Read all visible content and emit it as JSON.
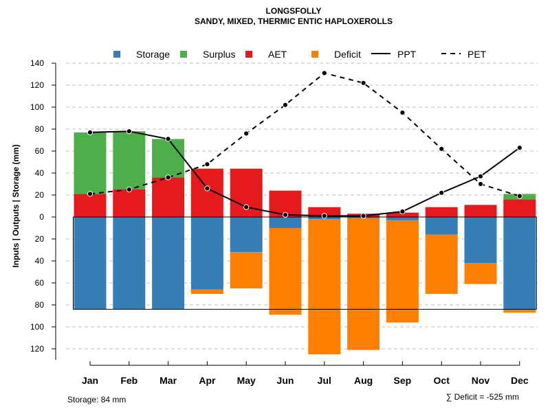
{
  "chart_data": {
    "type": "bar",
    "title": "LONGSFOLLY",
    "subtitle": "SANDY, MIXED, THERMIC ENTIC HAPLOXEROLLS",
    "ylabel": "Inputs | Outputs | Storage    (mm)",
    "categories": [
      "Jan",
      "Feb",
      "Mar",
      "Apr",
      "May",
      "Jun",
      "Jul",
      "Aug",
      "Sep",
      "Oct",
      "Nov",
      "Dec"
    ],
    "ylim": [
      -130,
      140
    ],
    "y_ticks": [
      140,
      120,
      100,
      80,
      60,
      40,
      20,
      0,
      -20,
      -40,
      -60,
      -80,
      -100,
      -120
    ],
    "y_tick_labels": [
      "140",
      "120",
      "100",
      "80",
      "60",
      "40",
      "20",
      "0",
      "20",
      "40",
      "60",
      "80",
      "100",
      "120"
    ],
    "legend": [
      {
        "label": "Storage",
        "kind": "box",
        "color": "#377EB8"
      },
      {
        "label": "Surplus",
        "kind": "box",
        "color": "#4DAF4A"
      },
      {
        "label": "AET",
        "kind": "box",
        "color": "#E41A1C"
      },
      {
        "label": "Deficit",
        "kind": "box",
        "color": "#FF7F00"
      },
      {
        "label": "PPT",
        "kind": "line",
        "color": "#000000"
      },
      {
        "label": "PET",
        "kind": "dash",
        "color": "#000000"
      }
    ],
    "colors": {
      "storage": "#377EB8",
      "surplus": "#4DAF4A",
      "aet": "#E41A1C",
      "deficit": "#FF7F00",
      "grid": "#bdbdbd"
    },
    "series": [
      {
        "name": "AET",
        "values": [
          21,
          25,
          36,
          44,
          44,
          24,
          9,
          3,
          4,
          9,
          11,
          16
        ]
      },
      {
        "name": "Surplus",
        "values": [
          56,
          53,
          35,
          0,
          0,
          0,
          0,
          0,
          0,
          0,
          0,
          5
        ]
      },
      {
        "name": "Storage",
        "values": [
          84,
          84,
          84,
          66,
          32,
          10,
          2,
          1,
          3,
          16,
          42,
          84
        ]
      },
      {
        "name": "Deficit",
        "values": [
          0,
          0,
          0,
          4,
          33,
          79,
          123,
          120,
          93,
          54,
          19,
          3
        ]
      },
      {
        "name": "PPT",
        "values": [
          77,
          78,
          71,
          26,
          9,
          2,
          1,
          1,
          5,
          22,
          37,
          63
        ]
      },
      {
        "name": "PET",
        "values": [
          21,
          25,
          36,
          48,
          76,
          102,
          131,
          122,
          95,
          62,
          30,
          19
        ]
      }
    ],
    "storage_capacity": 84
  },
  "notes": {
    "storage": "Storage: 84 mm",
    "deficit": "∑ Deficit = -525 mm"
  }
}
